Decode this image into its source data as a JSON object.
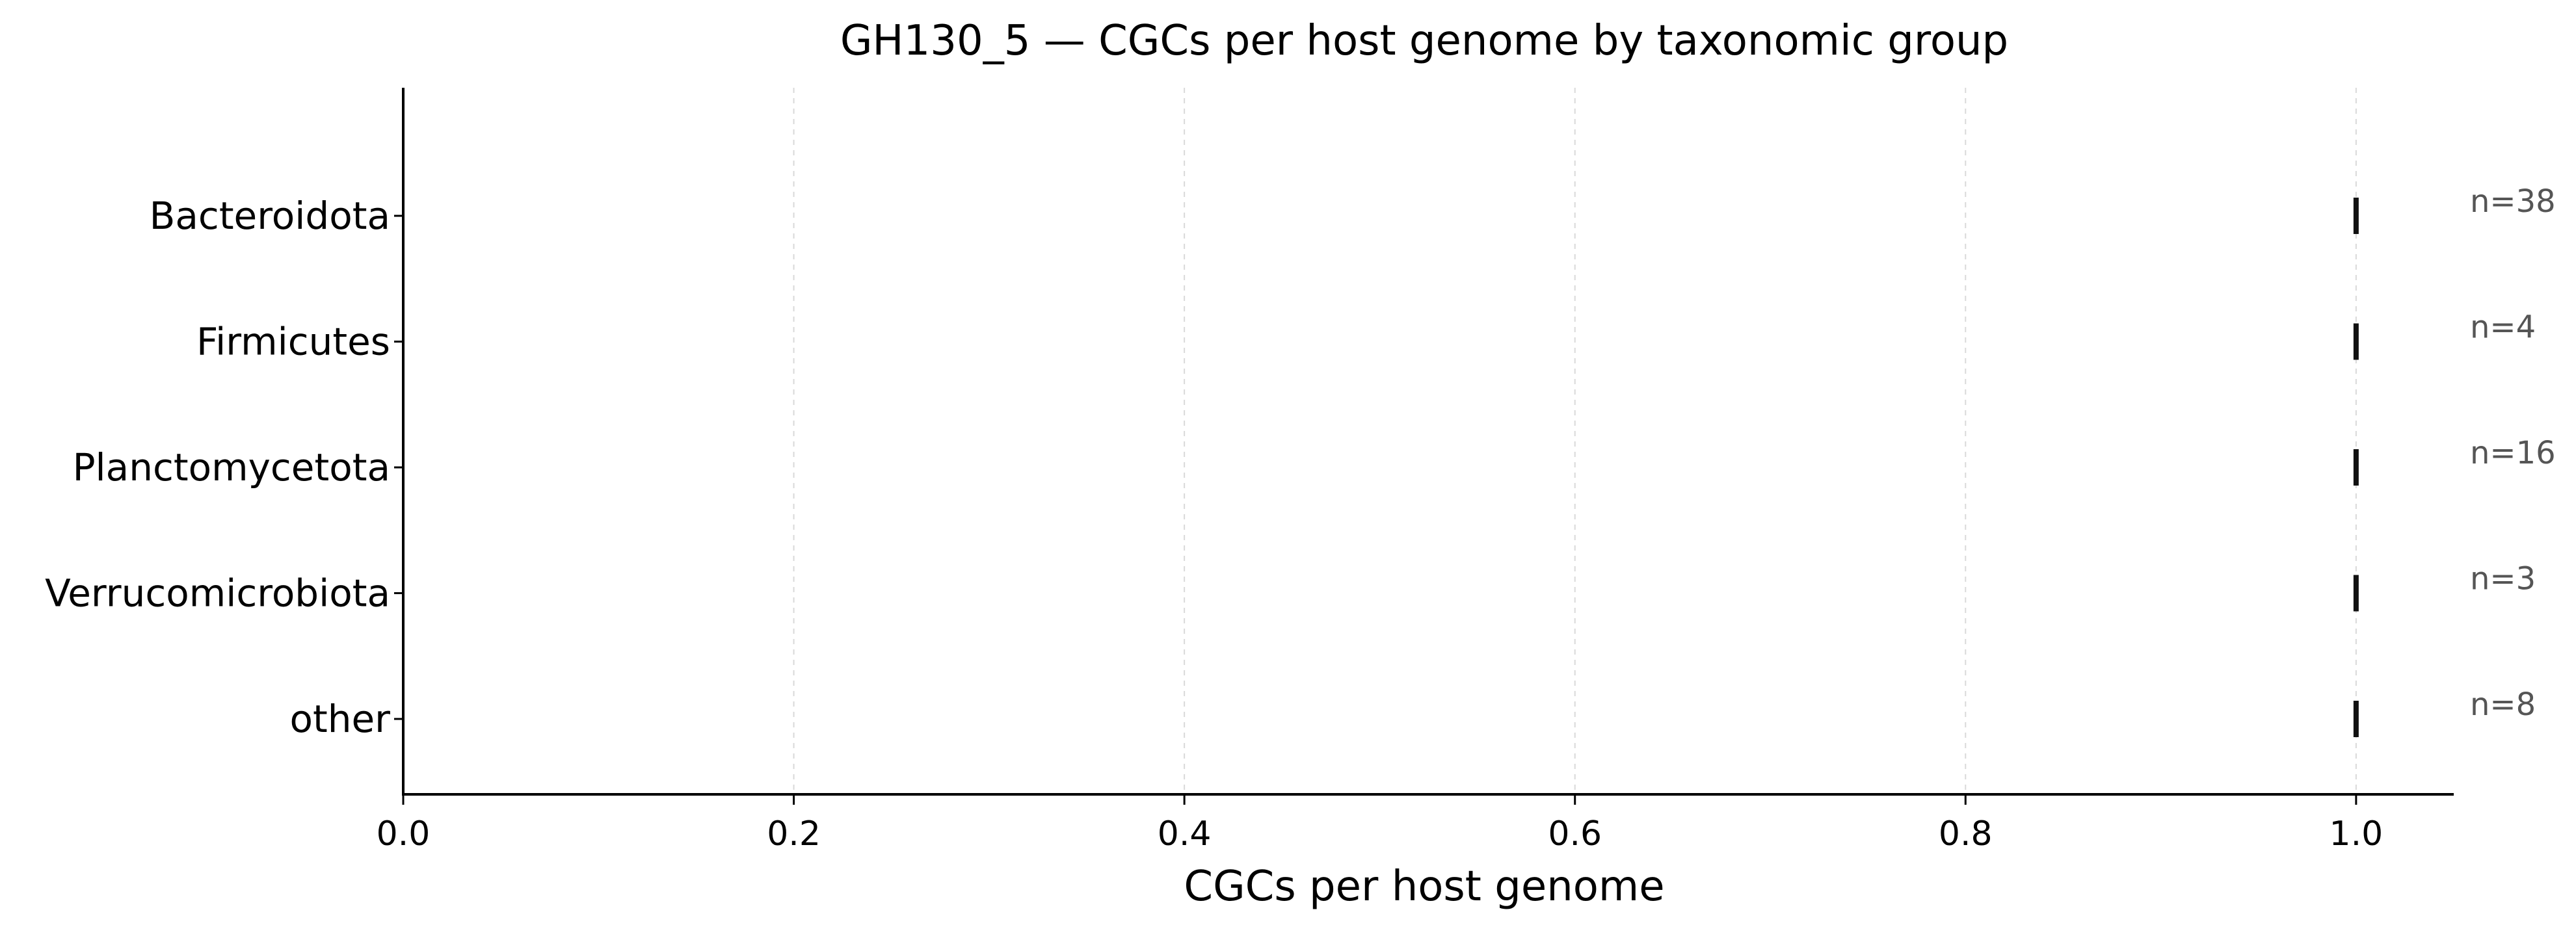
{
  "chart_data": {
    "type": "strip",
    "title": "GH130_5 — CGCs per host genome by taxonomic group",
    "xlabel": "CGCs per host genome",
    "ylabel": "",
    "xlim": [
      0,
      1.05
    ],
    "xticks": [
      0.0,
      0.2,
      0.4,
      0.6,
      0.8,
      1.0
    ],
    "xtick_labels": [
      "0.0",
      "0.2",
      "0.4",
      "0.6",
      "0.8",
      "1.0"
    ],
    "grid": "x-dashed",
    "categories": [
      "Bacteroidota",
      "Firmicutes",
      "Planctomycetota",
      "Verrucomicrobiota",
      "other"
    ],
    "values": [
      1.0,
      1.0,
      1.0,
      1.0,
      1.0
    ],
    "counts": [
      38,
      4,
      16,
      3,
      8
    ],
    "count_labels": [
      "n=38",
      "n=4",
      "n=16",
      "n=3",
      "n=8"
    ]
  },
  "colors": {
    "marker": "#111111",
    "axis": "#000000",
    "grid": "#d9d9d9",
    "count_text": "#555555",
    "text": "#000000"
  }
}
